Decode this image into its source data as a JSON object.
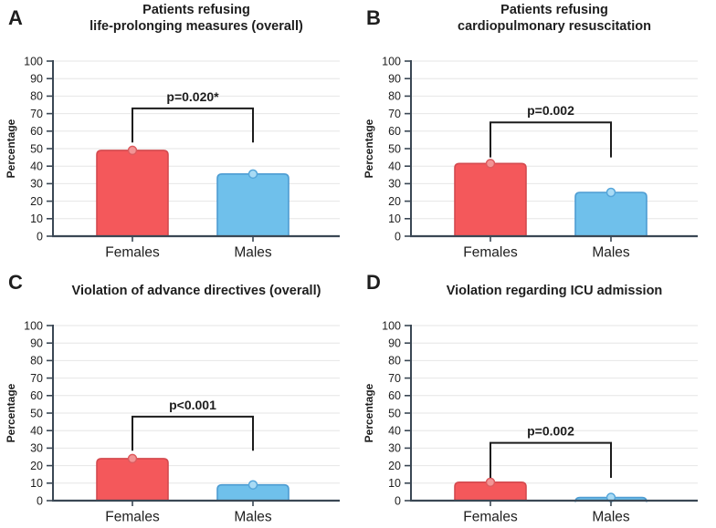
{
  "figure": {
    "ylabel": "Percentage",
    "categories": [
      "Females",
      "Males"
    ],
    "style": {
      "background": "#FFFFFF",
      "female_fill": "#F4585B",
      "female_stroke": "#D44A4F",
      "female_marker_fill": "#F29495",
      "female_marker_stroke": "#DD5B5E",
      "male_fill": "#6FC0EB",
      "male_stroke": "#4E9CD2",
      "male_marker_fill": "#A9DBF5",
      "male_marker_stroke": "#55A6DA",
      "axis_color": "#3A4754",
      "grid_color": "#E6E6E6",
      "text_color": "#1E1E1E",
      "bracket_color": "#1C1C1C"
    }
  },
  "chart_data": [
    {
      "type": "bar",
      "panel_label": "A",
      "title_lines": [
        "Patients refusing",
        "life-prolonging measures (overall)"
      ],
      "categories": [
        "Females",
        "Males"
      ],
      "values": [
        49,
        35.5
      ],
      "ylabel": "Percentage",
      "ylim": [
        0,
        100
      ],
      "ytick_step": 10,
      "grid": true,
      "significance": {
        "label": "p=0.020*",
        "top_pct": 73,
        "drop_pct": 53.5
      }
    },
    {
      "type": "bar",
      "panel_label": "B",
      "title_lines": [
        "Patients refusing",
        "cardiopulmonary resuscitation"
      ],
      "categories": [
        "Females",
        "Males"
      ],
      "values": [
        41.5,
        25
      ],
      "ylabel": "Percentage",
      "ylim": [
        0,
        100
      ],
      "ytick_step": 10,
      "grid": true,
      "significance": {
        "label": "p=0.002",
        "top_pct": 65,
        "drop_pct": 45
      }
    },
    {
      "type": "bar",
      "panel_label": "C",
      "title_lines": [
        "Violation of advance directives (overall)"
      ],
      "categories": [
        "Females",
        "Males"
      ],
      "values": [
        24,
        9
      ],
      "ylabel": "Percentage",
      "ylim": [
        0,
        100
      ],
      "ytick_step": 10,
      "grid": true,
      "significance": {
        "label": "p<0.001",
        "top_pct": 48,
        "drop_pct": 28.5
      }
    },
    {
      "type": "bar",
      "panel_label": "D",
      "title_lines": [
        "Violation regarding ICU admission"
      ],
      "categories": [
        "Females",
        "Males"
      ],
      "values": [
        10.5,
        1.8
      ],
      "ylabel": "Percentage",
      "ylim": [
        0,
        100
      ],
      "ytick_step": 10,
      "grid": true,
      "significance": {
        "label": "p=0.002",
        "top_pct": 33,
        "drop_pct": 13
      }
    }
  ]
}
